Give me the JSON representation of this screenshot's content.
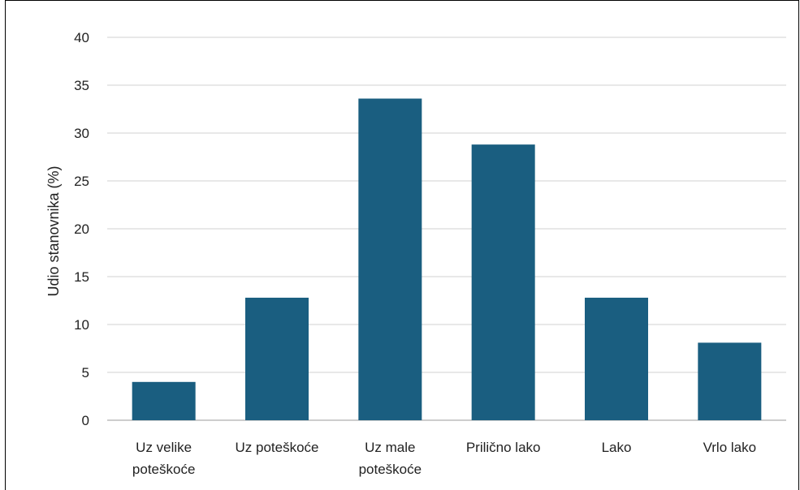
{
  "chart_data": {
    "type": "bar",
    "categories": [
      [
        "Uz velike",
        "poteškoće"
      ],
      [
        "Uz poteškoće"
      ],
      [
        "Uz male",
        "poteškoće"
      ],
      [
        "Prilično lako"
      ],
      [
        "Lako"
      ],
      [
        "Vrlo lako"
      ]
    ],
    "values": [
      4,
      12.8,
      33.6,
      28.8,
      12.8,
      8.1
    ],
    "ylabel": "Udio stanovnika (%)",
    "xlabel": "",
    "ylim": [
      0,
      40
    ],
    "yticks": [
      0,
      5,
      10,
      15,
      20,
      25,
      30,
      35,
      40
    ],
    "grid": true,
    "bar_color": "#1a5e80",
    "grid_color": "#d9d9d9"
  }
}
